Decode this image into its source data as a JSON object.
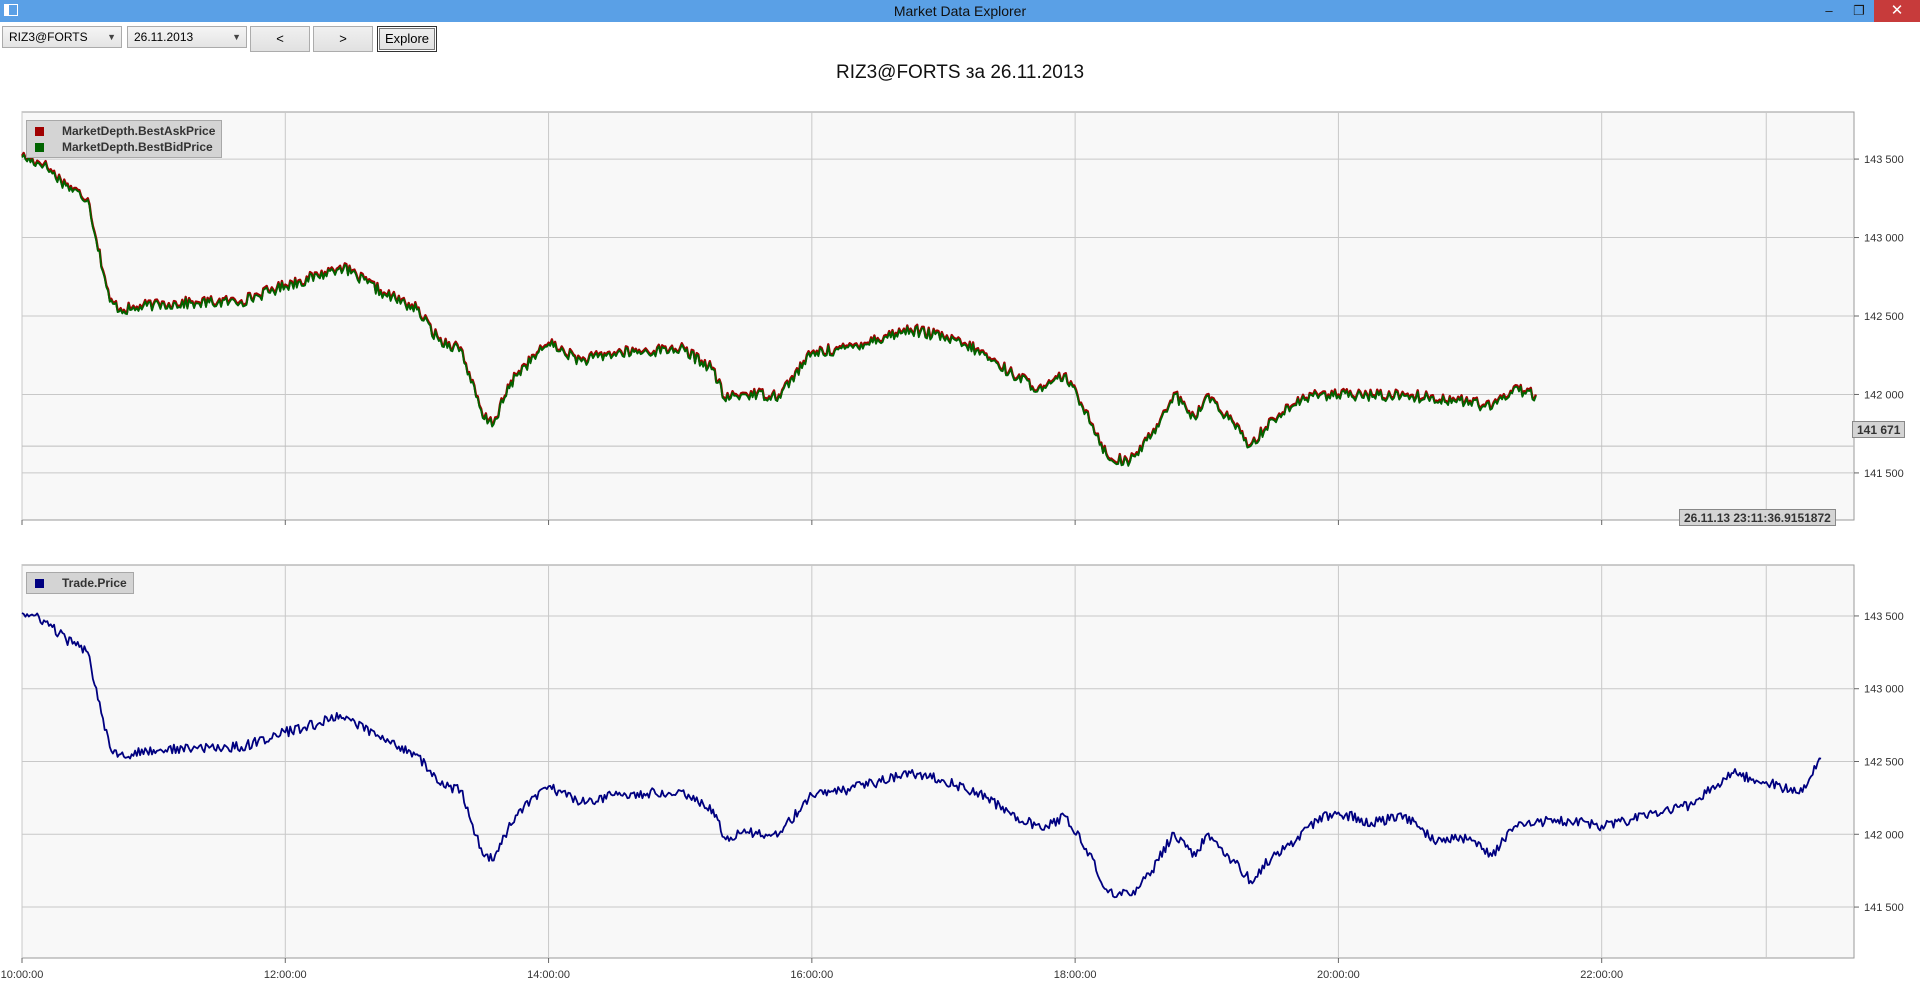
{
  "window": {
    "title": "Market Data Explorer",
    "minimize_glyph": "–",
    "maximize_glyph": "❐",
    "close_glyph": "✕"
  },
  "toolbar": {
    "security_value": "RIZ3@FORTS",
    "date_value": "26.11.2013",
    "prev_label": "<",
    "next_label": ">",
    "explore_label": "Explore"
  },
  "colors": {
    "ask": "#a00000",
    "bid": "#006400",
    "trade": "#000080",
    "grid": "#c8c8c8",
    "plot_bg": "#f8f8f8"
  },
  "chart_data": [
    {
      "type": "line",
      "title": "RIZ3@FORTS за 26.11.2013",
      "x_unit": "time",
      "xlim": [
        "10:00:00",
        "23:55:00"
      ],
      "ylim": [
        141200,
        143800
      ],
      "yticks": [
        "141 500",
        "142 000",
        "142 500",
        "143 000",
        "143 500"
      ],
      "ytick_values": [
        141500,
        142000,
        142500,
        143000,
        143500
      ],
      "xticks": [
        "10:00:00",
        "12:00:00",
        "14:00:00",
        "16:00:00",
        "18:00:00",
        "20:00:00",
        "22:00:00"
      ],
      "xtick_hours": [
        10,
        12,
        14,
        16,
        18,
        20,
        22
      ],
      "legend": "top-left",
      "grid": true,
      "cursor_price_label": "141 671",
      "cursor_price": 141671,
      "cursor_time_label": "26.11.13 23:11:36.9151872",
      "series": [
        {
          "name": "MarketDepth.BestAskPrice",
          "x": [
            "10:00",
            "10:10",
            "10:20",
            "10:30",
            "10:40",
            "10:45",
            "10:50",
            "11:00",
            "11:20",
            "11:40",
            "12:00",
            "12:15",
            "12:25",
            "12:30",
            "12:45",
            "13:00",
            "13:10",
            "13:20",
            "13:30",
            "13:35",
            "13:40",
            "13:45",
            "14:00",
            "14:15",
            "14:30",
            "14:45",
            "15:00",
            "15:15",
            "15:20",
            "15:30",
            "15:45",
            "16:00",
            "16:15",
            "16:30",
            "16:45",
            "17:00",
            "17:15",
            "17:30",
            "17:45",
            "17:55",
            "18:05",
            "18:15",
            "18:25",
            "18:35",
            "18:45",
            "18:55",
            "19:00",
            "19:10",
            "19:20",
            "19:30",
            "19:40",
            "19:50",
            "20:00",
            "20:30",
            "21:00",
            "21:10",
            "21:20",
            "21:30"
          ],
          "values": [
            143520,
            143470,
            143340,
            143250,
            142600,
            142550,
            142550,
            142580,
            142590,
            142600,
            142700,
            142760,
            142820,
            142780,
            142650,
            142550,
            142350,
            142300,
            141860,
            141820,
            141990,
            142130,
            142330,
            142220,
            142270,
            142280,
            142300,
            142170,
            141980,
            142010,
            142000,
            142270,
            142300,
            142360,
            142420,
            142370,
            142290,
            142150,
            142030,
            142130,
            141900,
            141600,
            141580,
            141750,
            142010,
            141850,
            142000,
            141850,
            141680,
            141850,
            141940,
            142010,
            142000,
            142000,
            141960,
            141920,
            142050,
            142000
          ]
        },
        {
          "name": "MarketDepth.BestBidPrice",
          "x": [
            "10:00",
            "10:10",
            "10:20",
            "10:30",
            "10:40",
            "10:45",
            "10:50",
            "11:00",
            "11:20",
            "11:40",
            "12:00",
            "12:15",
            "12:25",
            "12:30",
            "12:45",
            "13:00",
            "13:10",
            "13:20",
            "13:30",
            "13:35",
            "13:40",
            "13:45",
            "14:00",
            "14:15",
            "14:30",
            "14:45",
            "15:00",
            "15:15",
            "15:20",
            "15:30",
            "15:45",
            "16:00",
            "16:15",
            "16:30",
            "16:45",
            "17:00",
            "17:15",
            "17:30",
            "17:45",
            "17:55",
            "18:05",
            "18:15",
            "18:25",
            "18:35",
            "18:45",
            "18:55",
            "19:00",
            "19:10",
            "19:20",
            "19:30",
            "19:40",
            "19:50",
            "20:00",
            "20:30",
            "21:00",
            "21:10",
            "21:20",
            "21:30"
          ],
          "values": [
            143510,
            143460,
            143330,
            143240,
            142590,
            142540,
            142540,
            142570,
            142580,
            142590,
            142690,
            142750,
            142810,
            142770,
            142640,
            142540,
            142340,
            142290,
            141850,
            141810,
            141980,
            142120,
            142320,
            142210,
            142260,
            142270,
            142290,
            142160,
            141970,
            142000,
            141990,
            142260,
            142290,
            142350,
            142410,
            142360,
            142280,
            142140,
            142020,
            142120,
            141890,
            141590,
            141570,
            141740,
            142000,
            141840,
            141990,
            141840,
            141670,
            141840,
            141930,
            142000,
            141990,
            141990,
            141950,
            141910,
            142040,
            141990
          ]
        }
      ]
    },
    {
      "type": "line",
      "title": "",
      "x_unit": "time",
      "xlim": [
        "10:00:00",
        "23:55:00"
      ],
      "ylim": [
        141150,
        143850
      ],
      "yticks": [
        "141 500",
        "142 000",
        "142 500",
        "143 000",
        "143 500"
      ],
      "ytick_values": [
        141500,
        142000,
        142500,
        143000,
        143500
      ],
      "xticks": [
        "10:00:00",
        "12:00:00",
        "14:00:00",
        "16:00:00",
        "18:00:00",
        "20:00:00",
        "22:00:00"
      ],
      "xtick_hours": [
        10,
        12,
        14,
        16,
        18,
        20,
        22
      ],
      "legend": "top-left",
      "grid": true,
      "series": [
        {
          "name": "Trade.Price",
          "x": [
            "10:00",
            "10:10",
            "10:20",
            "10:30",
            "10:40",
            "10:45",
            "10:50",
            "11:00",
            "11:20",
            "11:40",
            "12:00",
            "12:15",
            "12:25",
            "12:30",
            "12:45",
            "13:00",
            "13:10",
            "13:20",
            "13:30",
            "13:35",
            "13:40",
            "13:45",
            "14:00",
            "14:15",
            "14:30",
            "14:45",
            "15:00",
            "15:15",
            "15:20",
            "15:30",
            "15:45",
            "16:00",
            "16:15",
            "16:30",
            "16:45",
            "17:00",
            "17:15",
            "17:30",
            "17:45",
            "17:55",
            "18:05",
            "18:15",
            "18:25",
            "18:35",
            "18:45",
            "18:55",
            "19:00",
            "19:10",
            "19:20",
            "19:30",
            "19:40",
            "19:50",
            "20:00",
            "20:15",
            "20:30",
            "20:45",
            "21:00",
            "21:10",
            "21:20",
            "21:40",
            "22:00",
            "22:20",
            "22:40",
            "22:50",
            "23:00",
            "23:15",
            "23:30",
            "23:40"
          ],
          "values": [
            143520,
            143470,
            143340,
            143250,
            142600,
            142550,
            142550,
            142580,
            142590,
            142600,
            142700,
            142760,
            142820,
            142780,
            142650,
            142550,
            142350,
            142300,
            141860,
            141820,
            141990,
            142130,
            142330,
            142220,
            142270,
            142280,
            142300,
            142170,
            141980,
            142010,
            142000,
            142270,
            142300,
            142360,
            142420,
            142370,
            142290,
            142150,
            142030,
            142130,
            141900,
            141600,
            141580,
            141750,
            142010,
            141850,
            142000,
            141850,
            141680,
            141850,
            141940,
            142100,
            142150,
            142080,
            142130,
            141950,
            141980,
            141850,
            142050,
            142100,
            142060,
            142120,
            142200,
            142320,
            142420,
            142360,
            142280,
            142520
          ]
        }
      ]
    }
  ]
}
